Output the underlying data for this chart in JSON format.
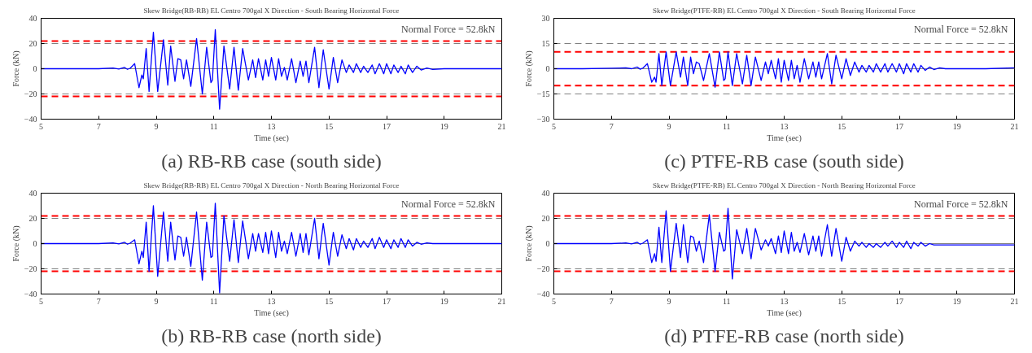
{
  "chart_data": [
    {
      "type": "line",
      "title": "Skew Bridge(RB-RB) EL Centro 700gal X Direction - South Bearing Horizontal Force",
      "xlabel": "Time (sec)",
      "ylabel": "Force (kN)",
      "annotations": [
        "Normal Force = 52.8kN",
        "(a) RB-RB case (south side)"
      ],
      "xlim": [
        5,
        21
      ],
      "ylim": [
        -40,
        40
      ],
      "xticks": [
        5,
        7,
        9,
        11,
        13,
        15,
        17,
        19,
        21
      ],
      "yticks": [
        -40,
        -20,
        0,
        20,
        40
      ],
      "grid": false,
      "line_style": "solid",
      "x": [
        5,
        6,
        7,
        7.5,
        7.7,
        7.9,
        8.0,
        8.1,
        8.25,
        8.4,
        8.5,
        8.55,
        8.65,
        8.75,
        8.9,
        9.05,
        9.25,
        9.4,
        9.5,
        9.65,
        9.75,
        9.85,
        9.95,
        10.05,
        10.2,
        10.4,
        10.6,
        10.75,
        10.9,
        10.95,
        11.05,
        11.2,
        11.35,
        11.55,
        11.7,
        11.85,
        12.0,
        12.2,
        12.35,
        12.45,
        12.55,
        12.7,
        12.8,
        12.9,
        13.0,
        13.15,
        13.25,
        13.35,
        13.45,
        13.55,
        13.7,
        13.85,
        14.0,
        14.1,
        14.2,
        14.3,
        14.5,
        14.65,
        14.8,
        15.0,
        15.15,
        15.3,
        15.45,
        15.6,
        15.7,
        15.85,
        15.95,
        16.1,
        16.2,
        16.35,
        16.5,
        16.6,
        16.75,
        16.9,
        17.0,
        17.15,
        17.25,
        17.4,
        17.5,
        17.65,
        17.75,
        17.9,
        18.05,
        18.2,
        18.4,
        18.6,
        19,
        20,
        21
      ],
      "series": [
        {
          "color": "#0000ff",
          "values": [
            0,
            0,
            0,
            0.5,
            -0.3,
            1,
            -0.5,
            0.5,
            4,
            -15,
            -5,
            -8,
            16,
            -18,
            29,
            -18,
            23,
            -13,
            18,
            -10,
            8,
            7,
            -8,
            7,
            -14,
            24,
            -20,
            17,
            -11,
            -9,
            31,
            -32,
            18,
            -16,
            17,
            -17,
            16,
            -9,
            7,
            -7,
            8,
            -9,
            7,
            -6,
            9,
            -9,
            8,
            -6,
            1,
            -9,
            8,
            -11,
            6,
            -6,
            6,
            -11,
            17,
            -15,
            15,
            -16,
            9,
            -11,
            7,
            -3,
            3,
            -3,
            4,
            -3,
            2,
            -3,
            3,
            -4,
            4,
            -4,
            4,
            -4,
            3,
            -3,
            2,
            -4,
            3,
            -3,
            2,
            -1,
            0.5,
            -0.5,
            0,
            0,
            0
          ]
        }
      ],
      "ref_lines": [
        {
          "axis": "y",
          "value": 0,
          "color": "#808080",
          "line_style": "solid"
        },
        {
          "axis": "y",
          "value": 20,
          "color": "#808080",
          "line_style": "dashed"
        },
        {
          "axis": "y",
          "value": -20,
          "color": "#808080",
          "line_style": "dashed"
        },
        {
          "axis": "y",
          "value": 22,
          "color": "#ff0000",
          "line_style": "dashed"
        },
        {
          "axis": "y",
          "value": -22,
          "color": "#ff0000",
          "line_style": "dashed"
        }
      ]
    },
    {
      "type": "line",
      "title": "Skew Bridge(PTFE-RB) EL Centro 700gal X Direction - South Bearing Horizontal Force",
      "xlabel": "Time (sec)",
      "ylabel": "Force (kN)",
      "annotations": [
        "Normal Force = 52.8kN",
        "(c) PTFE-RB case (south side)"
      ],
      "xlim": [
        5,
        21
      ],
      "ylim": [
        -30,
        30
      ],
      "xticks": [
        5,
        7,
        9,
        11,
        13,
        15,
        17,
        19,
        21
      ],
      "yticks": [
        -30,
        -15,
        0,
        15,
        30
      ],
      "grid": false,
      "line_style": "solid",
      "x": [
        5,
        6,
        7,
        7.5,
        7.7,
        7.9,
        8.0,
        8.1,
        8.25,
        8.4,
        8.5,
        8.55,
        8.65,
        8.75,
        8.9,
        9.05,
        9.25,
        9.4,
        9.5,
        9.65,
        9.75,
        9.85,
        9.95,
        10.05,
        10.2,
        10.4,
        10.6,
        10.75,
        10.9,
        10.95,
        11.05,
        11.2,
        11.35,
        11.55,
        11.7,
        11.85,
        12.0,
        12.2,
        12.35,
        12.45,
        12.55,
        12.7,
        12.8,
        12.9,
        13.0,
        13.15,
        13.25,
        13.35,
        13.45,
        13.55,
        13.7,
        13.85,
        14.0,
        14.1,
        14.2,
        14.3,
        14.5,
        14.65,
        14.8,
        15.0,
        15.15,
        15.3,
        15.45,
        15.6,
        15.7,
        15.85,
        15.95,
        16.1,
        16.2,
        16.35,
        16.5,
        16.6,
        16.75,
        16.9,
        17.0,
        17.15,
        17.25,
        17.4,
        17.5,
        17.65,
        17.75,
        17.9,
        18.05,
        18.2,
        18.4,
        18.6,
        19,
        20,
        21
      ],
      "series": [
        {
          "color": "#0000ff",
          "values": [
            0,
            0,
            0.3,
            0.5,
            0,
            1,
            -0.3,
            0.5,
            3,
            -8,
            -5,
            -8,
            9,
            -10,
            10,
            -10,
            10,
            -5,
            7,
            -10,
            7,
            -3,
            4,
            3,
            -7,
            9,
            -11,
            10,
            -7,
            -6,
            10,
            -10,
            9,
            -9,
            8,
            -10,
            7,
            -7,
            4,
            -3,
            5,
            -6,
            6,
            -8,
            5,
            -7,
            5,
            -6,
            2,
            -8,
            6,
            -6,
            4,
            -5,
            4,
            -6,
            9,
            -9,
            8,
            -6,
            6,
            -4,
            4,
            -2,
            2,
            -2,
            2,
            -2,
            3,
            -2,
            3,
            -2,
            3,
            -2,
            3,
            -3,
            3,
            -2,
            3,
            -2,
            2,
            -1,
            1,
            -0.5,
            0.5,
            0,
            0,
            0,
            0.5
          ]
        }
      ],
      "ref_lines": [
        {
          "axis": "y",
          "value": 0,
          "color": "#808080",
          "line_style": "solid"
        },
        {
          "axis": "y",
          "value": 15,
          "color": "#808080",
          "line_style": "dashed"
        },
        {
          "axis": "y",
          "value": -15,
          "color": "#808080",
          "line_style": "dashed"
        },
        {
          "axis": "y",
          "value": 10,
          "color": "#ff0000",
          "line_style": "dashed"
        },
        {
          "axis": "y",
          "value": -10,
          "color": "#ff0000",
          "line_style": "dashed"
        }
      ]
    },
    {
      "type": "line",
      "title": "Skew Bridge(RB-RB) EL Centro 700gal X Direction - North Bearing Horizontal Force",
      "xlabel": "Time (sec)",
      "ylabel": "Force (kN)",
      "annotations": [
        "Normal Force = 52.8kN",
        "(b) RB-RB case (north side)"
      ],
      "xlim": [
        5,
        21
      ],
      "ylim": [
        -40,
        40
      ],
      "xticks": [
        5,
        7,
        9,
        11,
        13,
        15,
        17,
        19,
        21
      ],
      "yticks": [
        -40,
        -20,
        0,
        20,
        40
      ],
      "grid": false,
      "line_style": "solid",
      "x": [
        5,
        6,
        7,
        7.5,
        7.7,
        7.9,
        8.0,
        8.1,
        8.25,
        8.4,
        8.5,
        8.55,
        8.65,
        8.75,
        8.9,
        9.05,
        9.25,
        9.4,
        9.5,
        9.65,
        9.75,
        9.85,
        9.95,
        10.05,
        10.2,
        10.4,
        10.6,
        10.75,
        10.9,
        10.95,
        11.05,
        11.2,
        11.35,
        11.55,
        11.7,
        11.85,
        12.0,
        12.2,
        12.35,
        12.45,
        12.55,
        12.7,
        12.8,
        12.9,
        13.0,
        13.15,
        13.25,
        13.35,
        13.45,
        13.55,
        13.7,
        13.85,
        14.0,
        14.1,
        14.2,
        14.3,
        14.5,
        14.65,
        14.8,
        15.0,
        15.15,
        15.3,
        15.45,
        15.6,
        15.7,
        15.85,
        15.95,
        16.1,
        16.2,
        16.35,
        16.5,
        16.6,
        16.75,
        16.9,
        17.0,
        17.15,
        17.25,
        17.4,
        17.5,
        17.65,
        17.75,
        17.9,
        18.05,
        18.2,
        18.4,
        18.6,
        19,
        20,
        21
      ],
      "series": [
        {
          "color": "#0000ff",
          "values": [
            0,
            0,
            0,
            0.5,
            -0.3,
            1,
            -0.5,
            0.5,
            3,
            -16,
            -6,
            -11,
            17,
            -22,
            30,
            -26,
            25,
            -14,
            17,
            -13,
            6,
            5,
            -10,
            5,
            -18,
            25,
            -29,
            17,
            -11,
            -10,
            32,
            -39,
            22,
            -14,
            19,
            -15,
            18,
            -12,
            8,
            -6,
            8,
            -7,
            9,
            -8,
            10,
            -11,
            9,
            -6,
            2,
            -8,
            9,
            -10,
            8,
            -7,
            8,
            -9,
            20,
            -12,
            16,
            -17,
            9,
            -10,
            7,
            -4,
            4,
            -5,
            4,
            -3,
            2,
            -3,
            4,
            -4,
            5,
            -3,
            3,
            -4,
            3,
            -3,
            4,
            -3,
            3,
            -2,
            1,
            -0.5,
            0.5,
            0,
            0,
            0,
            0
          ]
        }
      ],
      "ref_lines": [
        {
          "axis": "y",
          "value": 0,
          "color": "#808080",
          "line_style": "solid"
        },
        {
          "axis": "y",
          "value": 20,
          "color": "#808080",
          "line_style": "dashed"
        },
        {
          "axis": "y",
          "value": -20,
          "color": "#808080",
          "line_style": "dashed"
        },
        {
          "axis": "y",
          "value": 22,
          "color": "#ff0000",
          "line_style": "dashed"
        },
        {
          "axis": "y",
          "value": -22,
          "color": "#ff0000",
          "line_style": "dashed"
        }
      ]
    },
    {
      "type": "line",
      "title": "Skew Bridge(PTFE-RB) EL Centro 700gal X Direction - North Bearing Horizontal Force",
      "xlabel": "Time (sec)",
      "ylabel": "Force (kN)",
      "annotations": [
        "Normal Force = 52.8kN",
        "(d) PTFE-RB case (north side)"
      ],
      "xlim": [
        5,
        21
      ],
      "ylim": [
        -40,
        40
      ],
      "xticks": [
        5,
        7,
        9,
        11,
        13,
        15,
        17,
        19,
        21
      ],
      "yticks": [
        -40,
        -20,
        0,
        20,
        40
      ],
      "grid": false,
      "line_style": "solid",
      "x": [
        5,
        6,
        7,
        7.5,
        7.7,
        7.9,
        8.0,
        8.1,
        8.25,
        8.4,
        8.5,
        8.55,
        8.65,
        8.75,
        8.9,
        9.05,
        9.25,
        9.4,
        9.5,
        9.65,
        9.75,
        9.85,
        9.95,
        10.05,
        10.2,
        10.4,
        10.6,
        10.75,
        10.9,
        10.95,
        11.05,
        11.2,
        11.35,
        11.55,
        11.7,
        11.85,
        12.0,
        12.2,
        12.35,
        12.45,
        12.55,
        12.7,
        12.8,
        12.9,
        13.0,
        13.15,
        13.25,
        13.35,
        13.45,
        13.55,
        13.7,
        13.85,
        14.0,
        14.1,
        14.2,
        14.3,
        14.5,
        14.65,
        14.8,
        15.0,
        15.15,
        15.3,
        15.45,
        15.6,
        15.7,
        15.85,
        15.95,
        16.1,
        16.2,
        16.35,
        16.5,
        16.6,
        16.75,
        16.9,
        17.0,
        17.15,
        17.25,
        17.4,
        17.5,
        17.65,
        17.75,
        17.9,
        18.05,
        18.2,
        18.4,
        18.6,
        19,
        20,
        21
      ],
      "series": [
        {
          "color": "#0000ff",
          "values": [
            0,
            0,
            0,
            0.5,
            -0.3,
            1,
            -0.5,
            0.5,
            3,
            -15,
            -8,
            -14,
            13,
            -15,
            26,
            -22,
            16,
            -11,
            15,
            -15,
            6,
            5,
            -6,
            2,
            -15,
            23,
            -22,
            9,
            -6,
            -5,
            28,
            -28,
            11,
            -8,
            12,
            -12,
            12,
            -5,
            3,
            -2,
            4,
            -8,
            6,
            -7,
            10,
            -8,
            9,
            -6,
            1,
            -7,
            8,
            -9,
            6,
            -6,
            6,
            -10,
            15,
            -10,
            12,
            -14,
            5,
            -6,
            2,
            -2,
            1,
            -3,
            0,
            -3,
            0,
            -3,
            1,
            -2,
            2,
            -3,
            1,
            -3,
            2,
            -4,
            1,
            -2,
            1,
            -2,
            0,
            -1,
            -1,
            -1,
            -1,
            -1,
            -1
          ]
        }
      ],
      "ref_lines": [
        {
          "axis": "y",
          "value": 0,
          "color": "#808080",
          "line_style": "solid"
        },
        {
          "axis": "y",
          "value": 20,
          "color": "#808080",
          "line_style": "dashed"
        },
        {
          "axis": "y",
          "value": -20,
          "color": "#808080",
          "line_style": "dashed"
        },
        {
          "axis": "y",
          "value": 22,
          "color": "#ff0000",
          "line_style": "dashed"
        },
        {
          "axis": "y",
          "value": -22,
          "color": "#ff0000",
          "line_style": "dashed"
        }
      ]
    }
  ]
}
